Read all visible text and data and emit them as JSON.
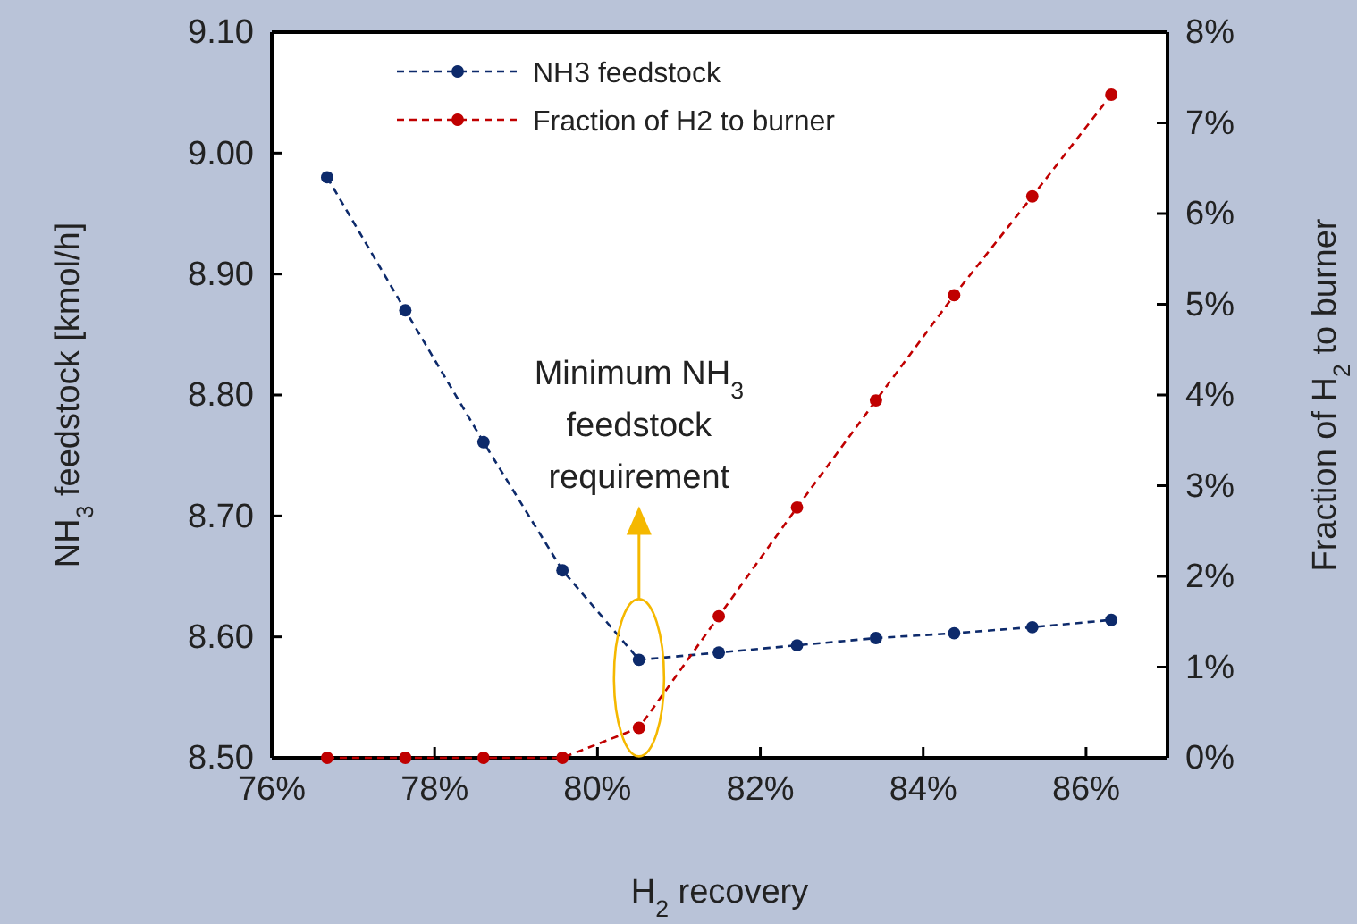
{
  "chart_data": {
    "type": "line",
    "xlabel": "H$_{2}$ recovery",
    "ylabel": "NH$_{3}$ feedstock [kmol/h]",
    "y2label": "Fraction of H$_{2}$ to burner",
    "x": [
      76.68,
      77.64,
      78.6,
      79.57,
      80.51,
      81.49,
      82.45,
      83.42,
      84.38,
      85.34,
      86.31
    ],
    "series": [
      {
        "name": "NH3 feedstock",
        "color": "#0d2a6b",
        "values": [
          8.98,
          8.87,
          8.761,
          8.655,
          8.581,
          8.587,
          8.593,
          8.599,
          8.603,
          8.608,
          8.614
        ]
      },
      {
        "name": "Fraction of H2 to burner",
        "color": "#c00000",
        "axis": "y2",
        "values": [
          0,
          0,
          0,
          0,
          0.33,
          1.56,
          2.76,
          3.94,
          5.1,
          6.19,
          7.31
        ]
      }
    ],
    "xlim": [
      76,
      87
    ],
    "xticks": [
      {
        "value": 76,
        "label": "76%"
      },
      {
        "value": 78,
        "label": "78%"
      },
      {
        "value": 80,
        "label": "80%"
      },
      {
        "value": 82,
        "label": "82%"
      },
      {
        "value": 84,
        "label": "84%"
      },
      {
        "value": 86,
        "label": "86%"
      }
    ],
    "ylim": [
      8.5,
      9.1
    ],
    "yticks": [
      {
        "value": 8.5,
        "label": "8.50"
      },
      {
        "value": 8.6,
        "label": "8.60"
      },
      {
        "value": 8.7,
        "label": "8.70"
      },
      {
        "value": 8.8,
        "label": "8.80"
      },
      {
        "value": 8.9,
        "label": "8.90"
      },
      {
        "value": 9.0,
        "label": "9.00"
      },
      {
        "value": 9.1,
        "label": "9.10"
      }
    ],
    "y2lim": [
      0,
      8
    ],
    "y2ticks": [
      {
        "value": 0,
        "label": "0%"
      },
      {
        "value": 1,
        "label": "1%"
      },
      {
        "value": 2,
        "label": "2%"
      },
      {
        "value": 3,
        "label": "3%"
      },
      {
        "value": 4,
        "label": "4%"
      },
      {
        "value": 5,
        "label": "5%"
      },
      {
        "value": 6,
        "label": "6%"
      },
      {
        "value": 7,
        "label": "7%"
      },
      {
        "value": 8,
        "label": "8%"
      }
    ],
    "annotations": [
      "Minimum NH$_{3}$ feedstock requirement"
    ],
    "marker": "circle",
    "line_style": "dashed",
    "legend": "top",
    "grid": false
  }
}
